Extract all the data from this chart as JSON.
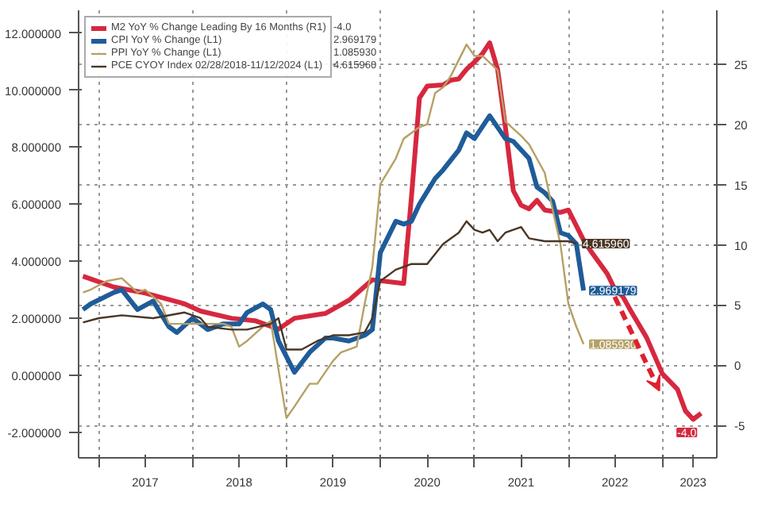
{
  "chart_data": {
    "type": "line",
    "xlim": [
      "2016-10-15",
      "2023-08-01"
    ],
    "xticks": [
      {
        "value": "2017-01-01",
        "label": null
      },
      {
        "value": "2017-07-01",
        "label": "2017"
      },
      {
        "value": "2018-01-01",
        "label": null
      },
      {
        "value": "2018-07-01",
        "label": "2018"
      },
      {
        "value": "2019-01-01",
        "label": null
      },
      {
        "value": "2019-07-01",
        "label": "2019"
      },
      {
        "value": "2020-01-01",
        "label": null
      },
      {
        "value": "2020-07-01",
        "label": "2020"
      },
      {
        "value": "2021-01-01",
        "label": null
      },
      {
        "value": "2021-07-01",
        "label": "2021"
      },
      {
        "value": "2022-01-01",
        "label": null
      },
      {
        "value": "2022-07-01",
        "label": "2022"
      },
      {
        "value": "2023-01-01",
        "label": null
      },
      {
        "value": "2023-05-01",
        "label": "2023"
      }
    ],
    "ylim": [
      -2.9,
      12.8
    ],
    "yticks": [
      {
        "value": -2,
        "label": "-2.000000"
      },
      {
        "value": 0,
        "label": "0.000000"
      },
      {
        "value": 2,
        "label": "2.000000"
      },
      {
        "value": 4,
        "label": "4.000000"
      },
      {
        "value": 6,
        "label": "6.000000"
      },
      {
        "value": 8,
        "label": "8.000000"
      },
      {
        "value": 10,
        "label": "10.000000"
      },
      {
        "value": 12,
        "label": "12.000000"
      }
    ],
    "y2lim": [
      -7.7,
      29.5
    ],
    "y2ticks": [
      -5,
      0,
      5,
      10,
      15,
      20,
      25
    ],
    "grid": true,
    "legend": "top left",
    "series": [
      {
        "name": "M2 YoY % Change Leading By 16 Months (R1)",
        "axis": "y2",
        "color": "#d6283f",
        "x": [
          "2016-11",
          "2017-03",
          "2017-07",
          "2017-12",
          "2018-02",
          "2018-06",
          "2018-09",
          "2018-12",
          "2019-02",
          "2019-06",
          "2019-09",
          "2019-12",
          "2020-04",
          "2020-05",
          "2020-06",
          "2020-07",
          "2020-09",
          "2020-10",
          "2020-11",
          "2020-12",
          "2021-01",
          "2021-02",
          "2021-03",
          "2021-04",
          "2021-05",
          "2021-06",
          "2021-07",
          "2021-08",
          "2021-09",
          "2021-10",
          "2021-12",
          "2022-01",
          "2022-03",
          "2022-04",
          "2022-06",
          "2022-07",
          "2022-08",
          "2022-09",
          "2022-11",
          "2023-01",
          "2023-03",
          "2023-04",
          "2023-05",
          "2023-06"
        ],
        "values": [
          7.4,
          6.5,
          6.0,
          5.1,
          4.5,
          3.9,
          3.7,
          3.0,
          3.9,
          4.3,
          5.4,
          7.1,
          6.8,
          14.0,
          22.2,
          23.2,
          23.3,
          23.7,
          23.8,
          24.6,
          25.2,
          25.9,
          26.8,
          24.6,
          19.8,
          14.5,
          13.3,
          13.0,
          13.7,
          12.9,
          12.7,
          12.9,
          10.4,
          9.4,
          7.6,
          6.3,
          5.7,
          4.5,
          2.3,
          -0.7,
          -2.0,
          -3.8,
          -4.5,
          -4.0
        ],
        "value_labels": [
          null,
          null,
          null,
          null,
          null,
          null,
          null,
          null,
          null,
          null,
          null,
          null,
          null,
          null,
          null,
          null,
          null,
          null,
          null,
          null,
          null,
          null,
          null,
          null,
          null,
          null,
          null,
          null,
          null,
          null,
          null,
          null,
          null,
          null,
          null,
          null,
          null,
          null,
          null,
          null,
          null,
          null,
          null,
          "-4.0"
        ]
      },
      {
        "name": "CPI YoY % Change (L1)",
        "color": "#1f5c99",
        "x": [
          "2016-11",
          "2016-12",
          "2017-03",
          "2017-04",
          "2017-06",
          "2017-08",
          "2017-10",
          "2017-11",
          "2018-01",
          "2018-03",
          "2018-05",
          "2018-07",
          "2018-08",
          "2018-10",
          "2018-11",
          "2018-12",
          "2019-02",
          "2019-04",
          "2019-06",
          "2019-07",
          "2019-09",
          "2019-11",
          "2019-12",
          "2020-01",
          "2020-03",
          "2020-04",
          "2020-05",
          "2020-06",
          "2020-08",
          "2020-09",
          "2020-11",
          "2020-12",
          "2021-01",
          "2021-03",
          "2021-05",
          "2021-06",
          "2021-08",
          "2021-09",
          "2021-10",
          "2021-11",
          "2021-12",
          "2022-01",
          "2022-02",
          "2022-03"
        ],
        "values": [
          2.3,
          2.5,
          2.9,
          3.0,
          2.3,
          2.6,
          1.7,
          1.5,
          2.0,
          1.6,
          1.8,
          1.8,
          2.2,
          2.5,
          2.3,
          1.2,
          0.1,
          0.8,
          1.3,
          1.3,
          1.2,
          1.4,
          1.6,
          4.3,
          5.4,
          5.3,
          5.4,
          6.0,
          6.9,
          7.2,
          7.9,
          8.5,
          8.3,
          9.1,
          8.3,
          8.2,
          7.6,
          6.6,
          6.4,
          6.1,
          5.0,
          4.9,
          4.6,
          2.969179
        ],
        "value_labels": [
          null,
          null,
          null,
          null,
          null,
          null,
          null,
          null,
          null,
          null,
          null,
          null,
          null,
          null,
          null,
          null,
          null,
          null,
          null,
          null,
          null,
          null,
          null,
          null,
          null,
          null,
          null,
          null,
          null,
          null,
          null,
          null,
          null,
          null,
          null,
          null,
          null,
          null,
          null,
          null,
          null,
          null,
          null,
          "2.969179"
        ]
      },
      {
        "name": "PPI YoY % Change (L1)",
        "color": "#b5a165",
        "x": [
          "2016-11",
          "2016-12",
          "2017-02",
          "2017-04",
          "2017-06",
          "2017-07",
          "2017-09",
          "2017-10",
          "2018-01",
          "2018-03",
          "2018-05",
          "2018-06",
          "2018-07",
          "2018-08",
          "2018-10",
          "2018-11",
          "2018-12",
          "2019-01",
          "2019-02",
          "2019-04",
          "2019-05",
          "2019-07",
          "2019-08",
          "2019-10",
          "2019-11",
          "2019-12",
          "2020-01",
          "2020-03",
          "2020-04",
          "2020-06",
          "2020-07",
          "2020-08",
          "2020-09",
          "2020-10",
          "2020-12",
          "2021-01",
          "2021-02",
          "2021-04",
          "2021-05",
          "2021-07",
          "2021-08",
          "2021-10",
          "2021-11",
          "2021-12",
          "2022-01",
          "2022-02",
          "2022-03"
        ],
        "values": [
          2.9,
          3.0,
          3.3,
          3.4,
          2.9,
          3.0,
          2.5,
          1.8,
          1.8,
          1.8,
          1.8,
          1.7,
          1.0,
          1.2,
          1.7,
          1.9,
          0.2,
          -1.5,
          -1.1,
          -0.3,
          -0.3,
          0.5,
          0.8,
          1.0,
          2.5,
          3.8,
          6.7,
          7.6,
          8.3,
          8.7,
          8.8,
          9.9,
          10.1,
          10.5,
          11.6,
          11.2,
          11.2,
          10.7,
          8.9,
          8.4,
          8.1,
          7.1,
          5.8,
          4.6,
          2.5,
          1.7,
          1.08593
        ],
        "value_labels": [
          null,
          null,
          null,
          null,
          null,
          null,
          null,
          null,
          null,
          null,
          null,
          null,
          null,
          null,
          null,
          null,
          null,
          null,
          null,
          null,
          null,
          null,
          null,
          null,
          null,
          null,
          null,
          null,
          null,
          null,
          null,
          null,
          null,
          null,
          null,
          null,
          null,
          null,
          null,
          null,
          null,
          null,
          null,
          null,
          null,
          null,
          "1.085930"
        ]
      },
      {
        "name": "PCE CYOY Index 02/28/2018-11/12/2024 (L1)",
        "color": "#4a3626",
        "x": [
          "2016-11",
          "2017-01",
          "2017-04",
          "2017-08",
          "2017-12",
          "2018-02",
          "2018-03",
          "2018-06",
          "2018-08",
          "2018-11",
          "2018-12",
          "2019-01",
          "2019-03",
          "2019-05",
          "2019-07",
          "2019-09",
          "2019-11",
          "2019-12",
          "2020-01",
          "2020-03",
          "2020-05",
          "2020-07",
          "2020-09",
          "2020-11",
          "2020-12",
          "2021-01",
          "2021-02",
          "2021-03",
          "2021-04",
          "2021-05",
          "2021-07",
          "2021-08",
          "2021-10",
          "2021-11",
          "2022-01",
          "2022-02"
        ],
        "values": [
          1.85,
          2.0,
          2.1,
          2.0,
          2.2,
          2.0,
          1.7,
          1.6,
          1.6,
          1.8,
          2.0,
          0.9,
          0.9,
          1.2,
          1.4,
          1.4,
          1.5,
          2.0,
          3.3,
          3.7,
          3.9,
          3.9,
          4.6,
          5.0,
          5.4,
          5.1,
          5.0,
          5.1,
          4.7,
          5.0,
          5.2,
          4.8,
          4.7,
          4.7,
          4.7,
          4.61596
        ],
        "value_labels": [
          null,
          null,
          null,
          null,
          null,
          null,
          null,
          null,
          null,
          null,
          null,
          null,
          null,
          null,
          null,
          null,
          null,
          null,
          null,
          null,
          null,
          null,
          null,
          null,
          null,
          null,
          null,
          null,
          null,
          null,
          null,
          null,
          null,
          null,
          null,
          "4.615960"
        ]
      }
    ]
  }
}
